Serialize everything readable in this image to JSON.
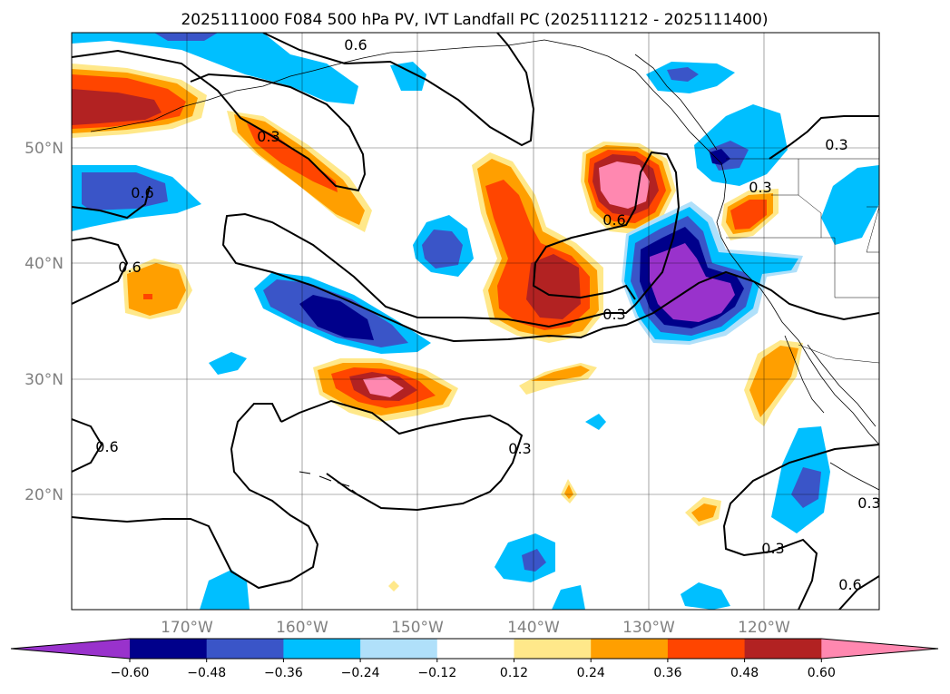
{
  "title": "2025111000 F084 500 hPa PV, IVT Landfall PC (2025111212 - 2025111400)",
  "map": {
    "lon_labels": [
      "170°W",
      "160°W",
      "150°W",
      "140°W",
      "130°W",
      "120°W"
    ],
    "lat_labels": [
      "50°N",
      "40°N",
      "30°N",
      "20°N"
    ],
    "contour_labels": [
      {
        "name": "contour-label-1",
        "text": "0.6"
      },
      {
        "name": "contour-label-2",
        "text": "0.3"
      },
      {
        "name": "contour-label-3",
        "text": "0.6"
      },
      {
        "name": "contour-label-4",
        "text": "0.6"
      },
      {
        "name": "contour-label-5",
        "text": "0.6"
      },
      {
        "name": "contour-label-6",
        "text": "0.3"
      },
      {
        "name": "contour-label-7",
        "text": "0.3"
      },
      {
        "name": "contour-label-8",
        "text": "0.3"
      },
      {
        "name": "contour-label-9",
        "text": "0.3"
      },
      {
        "name": "contour-label-10",
        "text": "0.6"
      },
      {
        "name": "contour-label-11",
        "text": "0.3"
      },
      {
        "name": "contour-label-12",
        "text": "0.3"
      },
      {
        "name": "contour-label-13",
        "text": "0.6"
      }
    ]
  },
  "colorbar": {
    "ticks": [
      "−0.60",
      "−0.48",
      "−0.36",
      "−0.24",
      "−0.12",
      "0.12",
      "0.24",
      "0.36",
      "0.48",
      "0.60"
    ],
    "colors": [
      "#9932cc",
      "#00008b",
      "#3a55c8",
      "#00bfff",
      "#b0e0fa",
      "#ffffff",
      "#ffe88a",
      "#ff9f00",
      "#ff4500",
      "#b22222",
      "#ff88b0"
    ]
  }
}
